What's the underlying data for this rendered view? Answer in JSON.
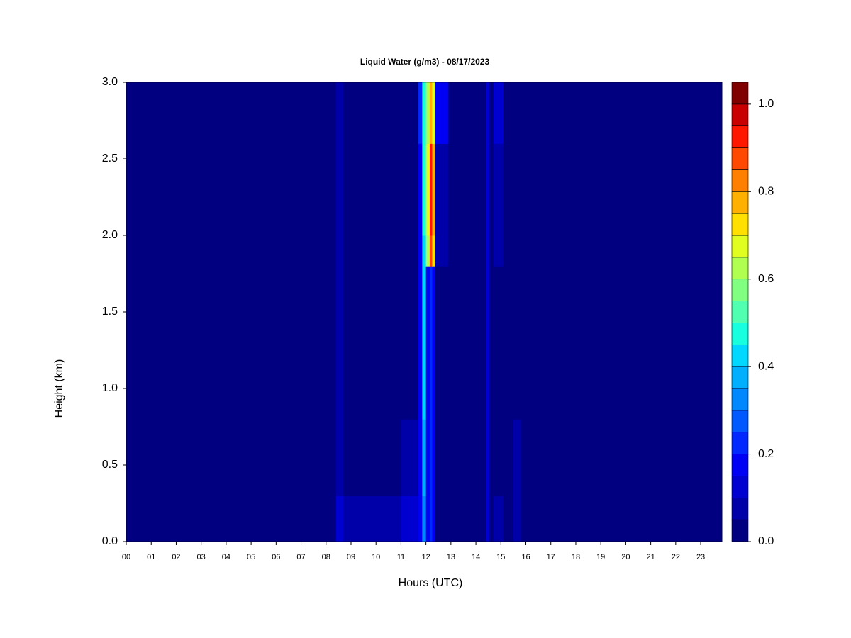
{
  "chart_data": {
    "type": "heatmap",
    "title": "Liquid Water (g/m3) - 08/17/2023",
    "x_label": "Hours (UTC)",
    "y_label": "Height (km)",
    "x": [
      0,
      8.4,
      8.7,
      9.3,
      11.0,
      11.7,
      11.85,
      12.0,
      12.15,
      12.25,
      12.35,
      12.9,
      14.4,
      14.55,
      14.7,
      15.1,
      15.5,
      15.8,
      23.85
    ],
    "y": [
      0,
      0.3,
      0.8,
      1.8,
      2.0,
      2.6,
      3.0
    ],
    "values": [
      [
        0.02,
        0.1,
        0.08,
        0.05,
        0.1,
        0.15,
        0.3,
        0.15,
        0.2,
        0.15,
        0.03,
        0.02,
        0.12,
        0.03,
        0.05,
        0.02,
        0.08,
        0.02
      ],
      [
        0.02,
        0.06,
        0.02,
        0.02,
        0.06,
        0.15,
        0.35,
        0.15,
        0.2,
        0.15,
        0.03,
        0.02,
        0.12,
        0.03,
        0.04,
        0.02,
        0.05,
        0.02
      ],
      [
        0.02,
        0.06,
        0.02,
        0.02,
        0.04,
        0.15,
        0.4,
        0.15,
        0.2,
        0.15,
        0.03,
        0.02,
        0.12,
        0.03,
        0.04,
        0.02,
        0.03,
        0.02
      ],
      [
        0.02,
        0.06,
        0.02,
        0.02,
        0.04,
        0.15,
        0.4,
        0.6,
        0.85,
        0.7,
        0.05,
        0.02,
        0.12,
        0.03,
        0.06,
        0.02,
        0.03,
        0.02
      ],
      [
        0.02,
        0.06,
        0.02,
        0.02,
        0.04,
        0.15,
        0.45,
        0.65,
        0.9,
        0.75,
        0.06,
        0.02,
        0.12,
        0.03,
        0.08,
        0.02,
        0.03,
        0.02
      ],
      [
        0.02,
        0.06,
        0.02,
        0.02,
        0.04,
        0.2,
        0.45,
        0.6,
        0.75,
        0.65,
        0.15,
        0.02,
        0.12,
        0.03,
        0.1,
        0.02,
        0.03,
        0.02
      ]
    ],
    "levels": [
      0,
      0.05,
      0.1,
      0.15,
      0.2,
      0.25,
      0.3,
      0.35,
      0.4,
      0.45,
      0.5,
      0.55,
      0.6,
      0.65,
      0.7,
      0.75,
      0.8,
      0.85,
      0.9,
      0.95,
      1.0,
      1.05
    ],
    "colors": [
      "#000080",
      "#0000a8",
      "#0000d0",
      "#0000f4",
      "#0028ff",
      "#0058ff",
      "#0088ff",
      "#00b0ff",
      "#00d8ff",
      "#18ffe0",
      "#50ffb0",
      "#80ff80",
      "#b0ff50",
      "#e0ff20",
      "#ffe000",
      "#ffb000",
      "#ff8000",
      "#ff4800",
      "#ff1800",
      "#c80000",
      "#800000"
    ],
    "xlim": [
      0,
      23.85
    ],
    "ylim": [
      0,
      3.0
    ],
    "xticks": [
      {
        "value": 0,
        "label": "00"
      },
      {
        "value": 1,
        "label": "01"
      },
      {
        "value": 2,
        "label": "02"
      },
      {
        "value": 3,
        "label": "03"
      },
      {
        "value": 4,
        "label": "04"
      },
      {
        "value": 5,
        "label": "05"
      },
      {
        "value": 6,
        "label": "06"
      },
      {
        "value": 7,
        "label": "07"
      },
      {
        "value": 8,
        "label": "08"
      },
      {
        "value": 9,
        "label": "09"
      },
      10,
      11,
      12,
      13,
      14,
      15,
      16,
      17,
      18,
      19,
      20,
      21,
      22,
      23
    ],
    "yticks": [
      {
        "value": 0,
        "label": "0.0"
      },
      0.5,
      {
        "value": 1,
        "label": "1.0"
      },
      1.5,
      {
        "value": 2,
        "label": "2.0"
      },
      2.5,
      {
        "value": 3,
        "label": "3.0"
      }
    ],
    "colorbar_ticks": [
      {
        "value": 0,
        "label": "0.0"
      },
      0.2,
      0.4,
      0.6,
      0.8,
      {
        "value": 1,
        "label": "1.0"
      }
    ]
  }
}
